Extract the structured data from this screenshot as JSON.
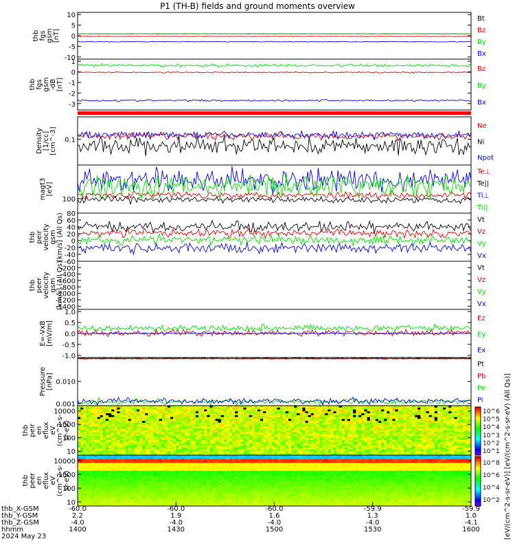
{
  "title": "P1 (TH-B) fields and ground moments overview",
  "chart_data": [
    {
      "type": "line",
      "ylabel": [
        "thb",
        "fgs",
        "gsm",
        "[nT]"
      ],
      "ylim": [
        -11,
        11
      ],
      "yticks": [
        "10",
        "5",
        "0",
        "-5",
        "-10"
      ],
      "ytick_values": [
        10,
        5,
        0,
        -5,
        -10
      ],
      "series": [
        {
          "name": "Bt",
          "color": "#000000",
          "level": 0.9,
          "noise": 0.05
        },
        {
          "name": "Bz",
          "color": "#e00000",
          "level": -0.3,
          "noise": 0.1
        },
        {
          "name": "By",
          "color": "#00dd00",
          "level": 0.9,
          "noise": 0.1
        },
        {
          "name": "Bx",
          "color": "#0000e0",
          "level": -2.8,
          "noise": 0.15
        }
      ]
    },
    {
      "type": "line",
      "ylabel": [
        "thb",
        "fgs",
        "gsm",
        "-dB",
        "[nT]"
      ],
      "ylim": [
        -3.6,
        1.2
      ],
      "yticks": [
        "1",
        "0",
        "-1",
        "-2",
        "-3"
      ],
      "ytick_values": [
        1,
        0,
        -1,
        -2,
        -3
      ],
      "series": [
        {
          "name": "Bz",
          "color": "#e00000",
          "level": -0.05,
          "noise": 0.05
        },
        {
          "name": "By",
          "color": "#00dd00",
          "level": 0.6,
          "noise": 0.12
        },
        {
          "name": "Bx",
          "color": "#0000e0",
          "level": -2.7,
          "noise": 0.08
        }
      ]
    },
    {
      "type": "line",
      "ylabel": [
        "Density",
        "[1/cc]",
        "[cm^-3]"
      ],
      "ylim": [
        0.02,
        0.4
      ],
      "log": true,
      "yticks": [
        "0.1"
      ],
      "ytick_values": [
        0.1
      ],
      "series": [
        {
          "name": "Ne",
          "color": "#e00000",
          "level": 0.12,
          "noise": 0.08
        },
        {
          "name": "Ni",
          "color": "#000000",
          "level": 0.065,
          "noise": 0.2
        },
        {
          "name": "Npot",
          "color": "#0000e0",
          "level": 0.13,
          "noise": 0.08
        }
      ]
    },
    {
      "type": "line",
      "ylabel": [
        "magt3",
        "[eV]"
      ],
      "ylim": [
        50,
        500
      ],
      "log": true,
      "yticks": [
        "100"
      ],
      "ytick_values": [
        100
      ],
      "series": [
        {
          "name": "Te⊥",
          "color": "#e00000",
          "level": 120,
          "noise": 0.06
        },
        {
          "name": "Te||",
          "color": "#000000",
          "level": 95,
          "noise": 0.06
        },
        {
          "name": "Ti⊥",
          "color": "#0000e0",
          "level": 240,
          "noise": 0.2
        },
        {
          "name": "Ti||",
          "color": "#00dd00",
          "level": 180,
          "noise": 0.2
        }
      ]
    },
    {
      "type": "line",
      "ylabel": [
        "thb",
        "peir",
        "velocity",
        "gsm",
        "[km/s] (All Qs)"
      ],
      "ylim": [
        -60,
        80
      ],
      "yticks": [
        "80",
        "60",
        "40",
        "20",
        "0",
        "-20",
        "-40",
        "-60"
      ],
      "ytick_values": [
        80,
        60,
        40,
        20,
        0,
        -20,
        -40,
        -60
      ],
      "series": [
        {
          "name": "Vt",
          "color": "#000000",
          "level": 40,
          "noise": 12
        },
        {
          "name": "Vz",
          "color": "#e00000",
          "level": 22,
          "noise": 10
        },
        {
          "name": "Vy",
          "color": "#00dd00",
          "level": 2,
          "noise": 12
        },
        {
          "name": "Vx",
          "color": "#0000e0",
          "level": -22,
          "noise": 12
        }
      ]
    },
    {
      "type": "line",
      "ylabel": [
        "thb",
        "peer",
        "velocity",
        "gsm",
        "[km/s] (All Qs)"
      ],
      "ylim": [
        -1500,
        0
      ],
      "yticks": [
        "-200",
        "-400",
        "-600",
        "-800",
        "-1000",
        "-1200",
        "-1400"
      ],
      "ytick_values": [
        -200,
        -400,
        -600,
        -800,
        -1000,
        -1200,
        -1400
      ],
      "series": [
        {
          "name": "Vt",
          "color": "#000000"
        },
        {
          "name": "Vz",
          "color": "#e00000"
        },
        {
          "name": "Vy",
          "color": "#00dd00"
        },
        {
          "name": "Vx",
          "color": "#0000e0"
        }
      ]
    },
    {
      "type": "line",
      "ylabel": [
        "E=-VxB",
        "[mV/m]"
      ],
      "ylim": [
        -1.1,
        1.1
      ],
      "yticks": [
        "1.0",
        "0.5",
        "0.0",
        "-0.5",
        "-1.0"
      ],
      "ytick_values": [
        1.0,
        0.5,
        0.0,
        -0.5,
        -1.0
      ],
      "series": [
        {
          "name": "Ez",
          "color": "#e00000",
          "level": 0.02,
          "noise": 0.12
        },
        {
          "name": "Ey",
          "color": "#00dd00",
          "level": 0.25,
          "noise": 0.12
        },
        {
          "name": "Ex",
          "color": "#0000e0",
          "level": 0.0,
          "noise": 0.02
        }
      ]
    },
    {
      "type": "line",
      "ylabel": [
        "Pressure",
        "[nPa]"
      ],
      "ylim": [
        0.0008,
        0.12
      ],
      "log": true,
      "yticks": [
        "0.010",
        "0.001"
      ],
      "ytick_values": [
        0.01,
        0.001
      ],
      "series": [
        {
          "name": "Pt",
          "color": "#000000",
          "level": 0.11,
          "noise": 0.01
        },
        {
          "name": "Pb",
          "color": "#e00000",
          "level": 0.105,
          "noise": 0.01
        },
        {
          "name": "Pe",
          "color": "#00dd00",
          "level": 0.0012,
          "noise": 0.1
        },
        {
          "name": "Pi",
          "color": "#0000e0",
          "level": 0.0013,
          "noise": 0.12
        }
      ]
    },
    {
      "type": "heatmap",
      "ylabel": [
        "thb",
        "peir",
        "en",
        "eflux",
        "eV",
        "(cm^2-s-",
        "sr-eV)"
      ],
      "ylim": [
        5,
        25000
      ],
      "log": true,
      "yticks": [
        "10000",
        "1000",
        "100",
        "10"
      ],
      "ytick_values": [
        10000,
        1000,
        100,
        10
      ]
    },
    {
      "type": "heatmap",
      "ylabel": [
        "thb",
        "peer",
        "en",
        "eflux",
        "eV",
        "(cm^2-s-",
        "sr-eV)"
      ],
      "ylim": [
        5,
        25000
      ],
      "log": true,
      "yticks": [
        "10000",
        "1000",
        "100",
        "10"
      ],
      "ytick_values": [
        10000,
        1000,
        100,
        10
      ]
    }
  ],
  "colorbar": {
    "label": "[eV/(cm^2-s-sr-eV)] [eV/(cm^2-s-sr-eV) (All Qs)]",
    "ticks_top": [
      "10^6",
      "10^5",
      "10^4",
      "10^3",
      "10^2",
      "10^1"
    ],
    "ticks_bottom": [
      "10^8",
      "10^6",
      "10^4",
      "10^2"
    ]
  },
  "footer": {
    "rows": [
      {
        "label": "thb_X-GSM",
        "values": [
          "-60.0",
          "-60.0",
          "-60.0",
          "-59.9",
          "-59.9"
        ]
      },
      {
        "label": "thb_Y-GSM",
        "values": [
          "2.2",
          "1.9",
          "1.6",
          "1.3",
          "1.0"
        ]
      },
      {
        "label": "thb_Z-GSM",
        "values": [
          "-4.0",
          "-4.0",
          "-4.0",
          "-4.0",
          "-4.1"
        ]
      },
      {
        "label": "hhmm",
        "values": [
          "1400",
          "1430",
          "1500",
          "1530",
          "1600"
        ]
      }
    ],
    "date": "2024 May 23"
  }
}
